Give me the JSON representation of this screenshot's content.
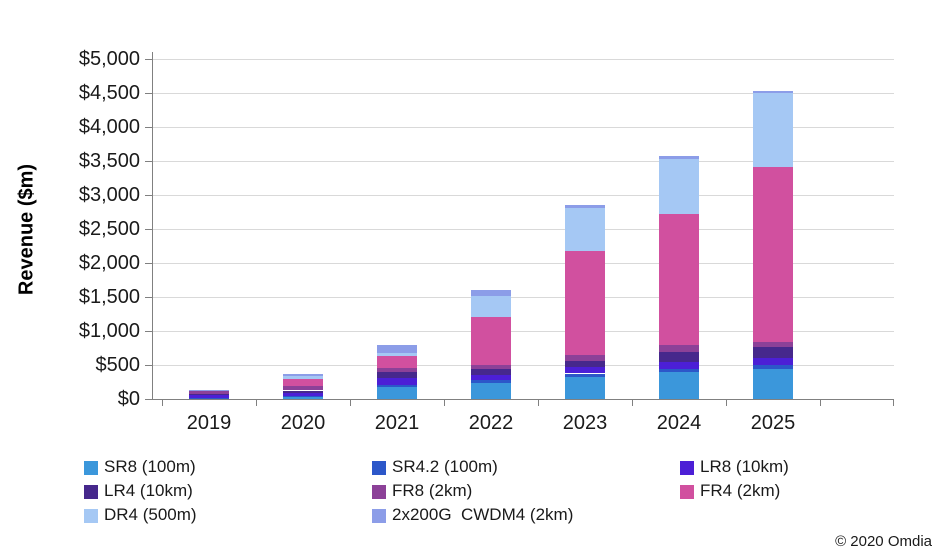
{
  "chart_data": {
    "type": "bar",
    "stacked": true,
    "title": "",
    "xlabel": "",
    "ylabel": "Revenue ($m)",
    "categories": [
      "2019",
      "2020",
      "2021",
      "2022",
      "2023",
      "2024",
      "2025"
    ],
    "series": [
      {
        "name": "SR8 (100m)",
        "color": "#3b97db",
        "values": [
          10,
          25,
          180,
          240,
          330,
          390,
          440
        ]
      },
      {
        "name": "SR4.2 (100m)",
        "color": "#2c57c9",
        "values": [
          5,
          15,
          30,
          40,
          45,
          50,
          60
        ]
      },
      {
        "name": "LR8 (10km)",
        "color": "#4c1fd6",
        "values": [
          40,
          45,
          100,
          80,
          90,
          100,
          100
        ]
      },
      {
        "name": "LR4 (10km)",
        "color": "#46288c",
        "values": [
          20,
          40,
          80,
          80,
          100,
          155,
          160
        ]
      },
      {
        "name": "FR8 (2km)",
        "color": "#8c4198",
        "values": [
          45,
          70,
          60,
          60,
          75,
          100,
          80
        ]
      },
      {
        "name": "FR4 (2km)",
        "color": "#d1509f",
        "values": [
          10,
          100,
          180,
          700,
          1540,
          1930,
          2570
        ]
      },
      {
        "name": "DR4 (500m)",
        "color": "#a5c8f4",
        "values": [
          3,
          45,
          40,
          310,
          630,
          810,
          1090
        ]
      },
      {
        "name": "2x200G  CWDM4 (2km)",
        "color": "#8c9de8",
        "values": [
          2,
          30,
          120,
          90,
          50,
          45,
          30
        ]
      }
    ],
    "y_axis": {
      "min": 0,
      "max": 5000,
      "step": 500,
      "tick_labels": [
        "$0",
        "$500",
        "$1,000",
        "$1,500",
        "$2,000",
        "$2,500",
        "$3,000",
        "$3,500",
        "$4,000",
        "$4,500",
        "$5,000"
      ]
    },
    "grid": true,
    "legend_position": "bottom"
  },
  "footer": {
    "copyright": "© 2020 Omdia"
  }
}
